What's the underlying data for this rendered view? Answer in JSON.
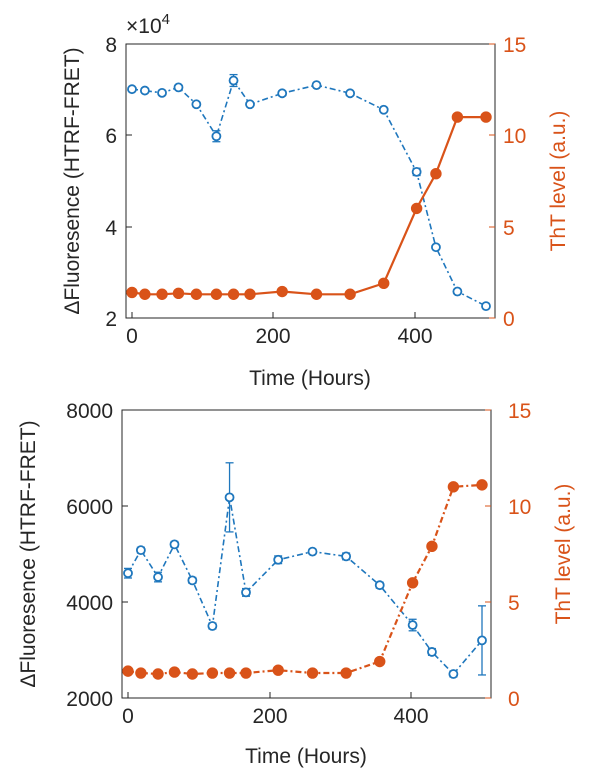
{
  "chart_data": [
    {
      "type": "line",
      "x_ticks": [
        "0",
        "200",
        "400"
      ],
      "xlabel": "Time (Hours)",
      "ylabel_left": "ΔFluoresence (HTRF-FRET)",
      "ylabel_right": "ThT level (a.u.)",
      "y_left_exponent": "×10",
      "y_left_exponent_power": "4",
      "y_left_ticks": [
        "8",
        "6",
        "4",
        "2"
      ],
      "y_right_ticks": [
        "15",
        "10",
        "5",
        "0"
      ],
      "xlim": [
        -8,
        510
      ],
      "ylim_left": [
        20000,
        80000
      ],
      "ylim_right": [
        0,
        15
      ],
      "grid": false,
      "colors": {
        "left": "#1f77bd",
        "right": "#d95319"
      },
      "series": [
        {
          "axis": "left",
          "style": "dash-dot",
          "marker": "open-circle",
          "x": [
            0,
            18,
            42,
            65,
            90,
            118,
            142,
            165,
            210,
            258,
            305,
            352,
            398,
            425,
            455,
            495
          ],
          "y": [
            70100,
            69800,
            69300,
            70500,
            66800,
            59800,
            72000,
            66800,
            69200,
            71000,
            69200,
            65600,
            52000,
            35500,
            25800,
            22600
          ],
          "err": [
            300,
            400,
            300,
            500,
            500,
            1200,
            1300,
            300,
            500,
            400,
            400,
            400,
            800,
            300,
            300,
            300
          ]
        },
        {
          "axis": "right",
          "style": "solid",
          "marker": "filled-circle",
          "x": [
            0,
            18,
            42,
            65,
            90,
            118,
            142,
            165,
            210,
            258,
            305,
            352,
            398,
            425,
            455,
            495
          ],
          "y": [
            1.4,
            1.3,
            1.3,
            1.35,
            1.3,
            1.3,
            1.3,
            1.3,
            1.45,
            1.3,
            1.3,
            1.9,
            6.0,
            7.9,
            11.0,
            11.0
          ]
        }
      ]
    },
    {
      "type": "line",
      "x_ticks": [
        "0",
        "200",
        "400"
      ],
      "xlabel": "Time (Hours)",
      "ylabel_left": "ΔFluoresence (HTRF-FRET)",
      "ylabel_right": "ThT level (a.u.)",
      "y_left_ticks": [
        "8000",
        "6000",
        "4000",
        "2000"
      ],
      "y_right_ticks": [
        "15",
        "10",
        "5",
        "0"
      ],
      "xlim": [
        -8,
        510
      ],
      "ylim_left": [
        2000,
        8000
      ],
      "ylim_right": [
        0,
        15
      ],
      "grid": false,
      "colors": {
        "left": "#1f77bd",
        "right": "#d95319"
      },
      "series": [
        {
          "axis": "left",
          "style": "dash-dot",
          "marker": "open-circle",
          "x": [
            0,
            18,
            42,
            65,
            90,
            118,
            142,
            165,
            210,
            258,
            305,
            352,
            398,
            425,
            455,
            495
          ],
          "y": [
            4600,
            5080,
            4520,
            5200,
            4450,
            3500,
            6180,
            4200,
            4880,
            5050,
            4950,
            4350,
            3520,
            2960,
            2500,
            3200
          ],
          "err": [
            100,
            60,
            100,
            60,
            60,
            60,
            720,
            80,
            80,
            50,
            70,
            60,
            120,
            70,
            60,
            720
          ]
        },
        {
          "axis": "right",
          "style": "dash-dot",
          "marker": "filled-circle",
          "x": [
            0,
            18,
            42,
            65,
            90,
            118,
            142,
            165,
            210,
            258,
            305,
            352,
            398,
            425,
            455,
            495
          ],
          "y": [
            1.4,
            1.3,
            1.25,
            1.35,
            1.25,
            1.3,
            1.3,
            1.3,
            1.45,
            1.3,
            1.3,
            1.9,
            6.0,
            7.9,
            11.0,
            11.1
          ]
        }
      ]
    }
  ]
}
